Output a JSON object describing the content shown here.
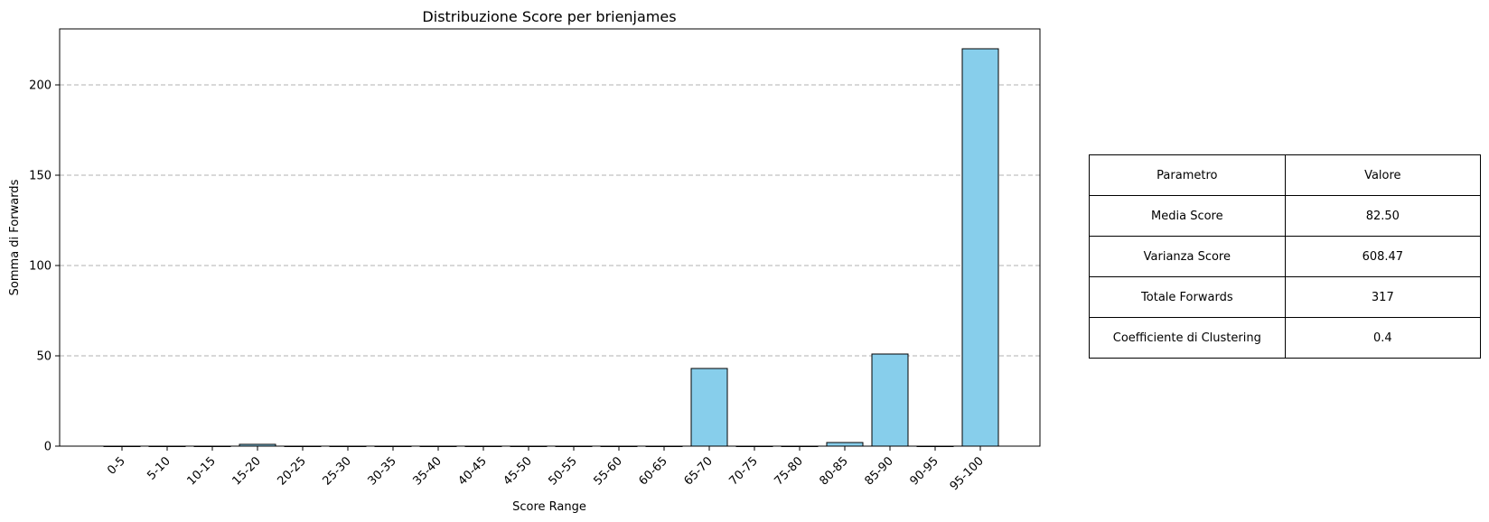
{
  "chart_data": {
    "type": "bar",
    "title": "Distribuzione Score per brienjames",
    "xlabel": "Score Range",
    "ylabel": "Somma di Forwards",
    "categories": [
      "0-5",
      "5-10",
      "10-15",
      "15-20",
      "20-25",
      "25-30",
      "30-35",
      "35-40",
      "40-45",
      "45-50",
      "50-55",
      "55-60",
      "60-65",
      "65-70",
      "70-75",
      "75-80",
      "80-85",
      "85-90",
      "90-95",
      "95-100"
    ],
    "values": [
      0,
      0,
      0,
      1,
      0,
      0,
      0,
      0,
      0,
      0,
      0,
      0,
      0,
      43,
      0,
      0,
      2,
      51,
      0,
      220
    ],
    "ylim": [
      0,
      231
    ],
    "yticks": [
      0,
      50,
      100,
      150,
      200
    ],
    "grid": "y-dashed",
    "bar_color": "#87CEEB",
    "edge_color": "#000000"
  },
  "table": {
    "header": [
      "Parametro",
      "Valore"
    ],
    "rows": [
      [
        "Media Score",
        "82.50"
      ],
      [
        "Varianza Score",
        "608.47"
      ],
      [
        "Totale Forwards",
        "317"
      ],
      [
        "Coefficiente di Clustering",
        "0.4"
      ]
    ]
  }
}
